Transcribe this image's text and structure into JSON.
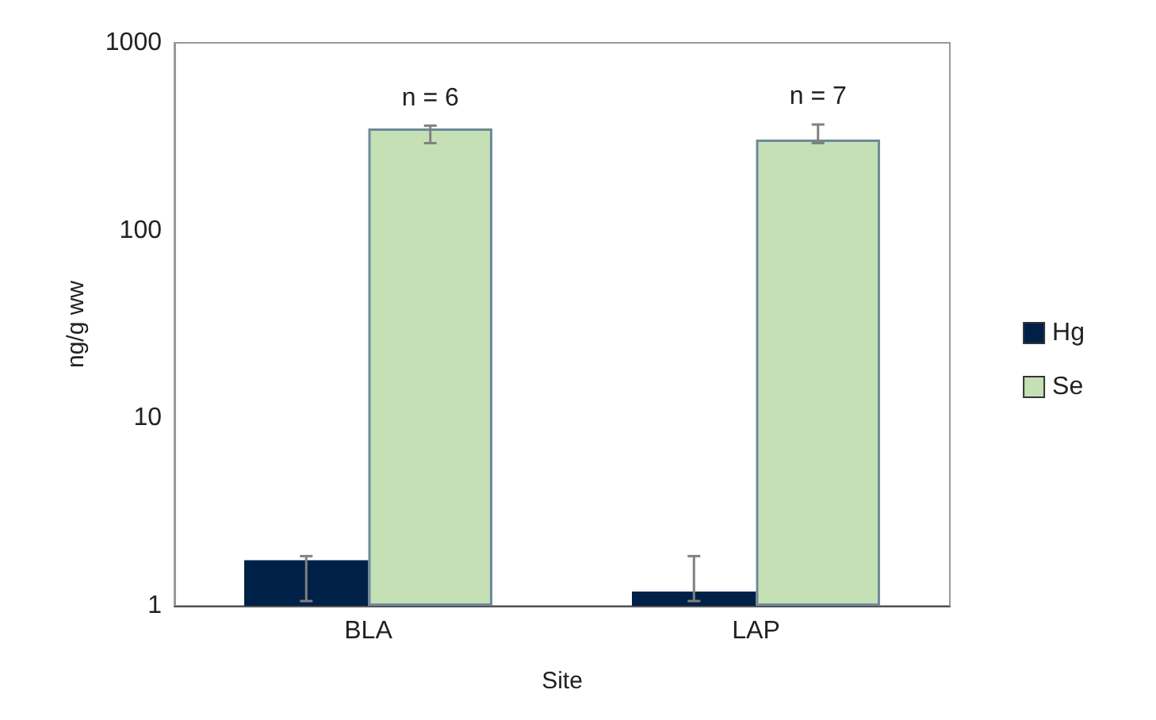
{
  "chart_data": {
    "type": "bar",
    "xlabel": "Site",
    "ylabel": "ng/g ww",
    "categories": [
      "BLA",
      "LAP"
    ],
    "series": [
      {
        "name": "Hg",
        "color": "#002147",
        "values": [
          1.75,
          1.19
        ],
        "errors": [
          [
            1.06,
            1.84
          ],
          [
            1.06,
            1.84
          ]
        ]
      },
      {
        "name": "Se",
        "color": "#c5e0b4",
        "values": [
          350,
          305
        ],
        "errors": [
          [
            292,
            362
          ],
          [
            292,
            367
          ]
        ]
      }
    ],
    "annotations": [
      "n = 6",
      "n = 7"
    ],
    "log": true,
    "ylim": [
      1,
      1000
    ],
    "yticks": [
      1,
      10,
      100,
      1000
    ],
    "grid": false,
    "legend": "right"
  }
}
